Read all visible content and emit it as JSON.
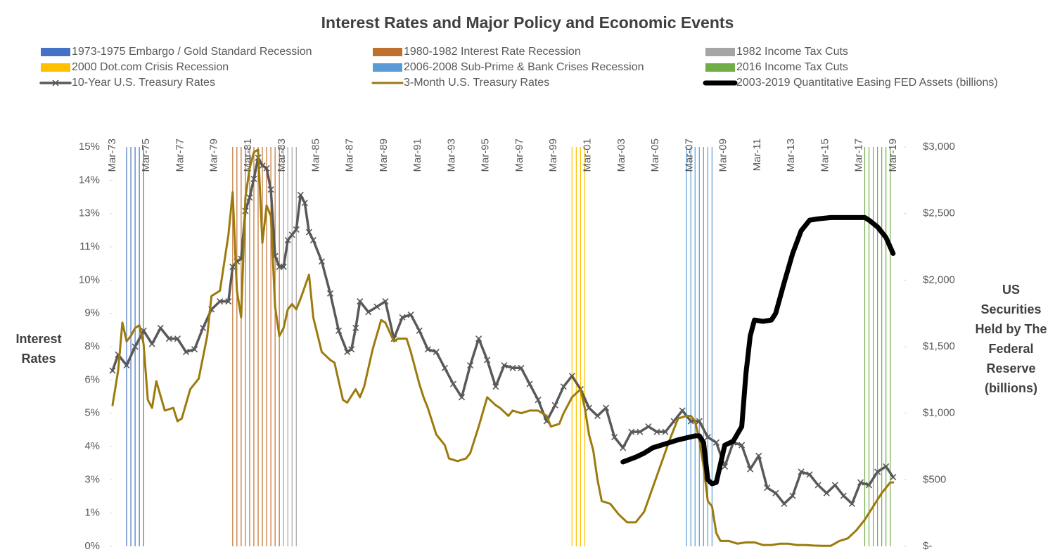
{
  "chart_data": {
    "type": "line",
    "title": "Interest Rates and Major Policy and Economic Events",
    "ylabel": "Interest Rates",
    "y2label": "US Securities Held by The Federal Reserve (billions)",
    "xlim": [
      1973.17,
      2019.8
    ],
    "xticks": [
      {
        "value": 1973.17,
        "label": "Mar-73"
      },
      {
        "value": 1975.17,
        "label": "Mar-75"
      },
      {
        "value": 1977.17,
        "label": "Mar-77"
      },
      {
        "value": 1979.17,
        "label": "Mar-79"
      },
      {
        "value": 1981.17,
        "label": "Mar-81"
      },
      {
        "value": 1983.17,
        "label": "Mar-83"
      },
      {
        "value": 1985.17,
        "label": "Mar-85"
      },
      {
        "value": 1987.17,
        "label": "Mar-87"
      },
      {
        "value": 1989.17,
        "label": "Mar-89"
      },
      {
        "value": 1991.17,
        "label": "Mar-91"
      },
      {
        "value": 1993.17,
        "label": "Mar-93"
      },
      {
        "value": 1995.17,
        "label": "Mar-95"
      },
      {
        "value": 1997.17,
        "label": "Mar-97"
      },
      {
        "value": 1999.17,
        "label": "Mar-99"
      },
      {
        "value": 2001.17,
        "label": "Mar-01"
      },
      {
        "value": 2003.17,
        "label": "Mar-03"
      },
      {
        "value": 2005.17,
        "label": "Mar-05"
      },
      {
        "value": 2007.17,
        "label": "Mar-07"
      },
      {
        "value": 2009.17,
        "label": "Mar-09"
      },
      {
        "value": 2011.17,
        "label": "Mar-11"
      },
      {
        "value": 2013.17,
        "label": "Mar-13"
      },
      {
        "value": 2015.17,
        "label": "Mar-15"
      },
      {
        "value": 2017.17,
        "label": "Mar-17"
      },
      {
        "value": 2019.17,
        "label": "Mar-19"
      }
    ],
    "ylim": [
      0,
      15
    ],
    "yticks": [
      {
        "value": 0,
        "label": "0%"
      },
      {
        "value": 1.25,
        "label": "1%"
      },
      {
        "value": 2.5,
        "label": "3%"
      },
      {
        "value": 3.75,
        "label": "4%"
      },
      {
        "value": 5,
        "label": "5%"
      },
      {
        "value": 6.25,
        "label": "6%"
      },
      {
        "value": 7.5,
        "label": "8%"
      },
      {
        "value": 8.75,
        "label": "9%"
      },
      {
        "value": 10,
        "label": "10%"
      },
      {
        "value": 11.25,
        "label": "11%"
      },
      {
        "value": 12.5,
        "label": "13%"
      },
      {
        "value": 13.75,
        "label": "14%"
      },
      {
        "value": 15,
        "label": "15%"
      }
    ],
    "y2lim": [
      0,
      3000
    ],
    "y2ticks": [
      {
        "value": 0,
        "label": "$-"
      },
      {
        "value": 500,
        "label": "$500"
      },
      {
        "value": 1000,
        "label": "$1,000"
      },
      {
        "value": 1500,
        "label": "$1,500"
      },
      {
        "value": 2000,
        "label": "$2,000"
      },
      {
        "value": 2500,
        "label": "$2,500"
      },
      {
        "value": 3000,
        "label": "$3,000"
      }
    ],
    "events": [
      {
        "name": "1973-1975 Embargo / Gold Standard Recession",
        "color": "#4472c4",
        "x": [
          1974,
          1974.25,
          1974.5,
          1974.75,
          1975
        ]
      },
      {
        "name": "1980-1982 Interest Rate Recession",
        "color": "#c0702e",
        "x": [
          1980.25,
          1980.5,
          1980.75,
          1981,
          1981.25,
          1981.5,
          1981.75,
          1982,
          1982.25,
          1982.5,
          1982.75,
          1983
        ]
      },
      {
        "name": "1982 Income Tax Cuts",
        "color": "#a5a5a5",
        "x": [
          1983.25,
          1983.5,
          1983.75,
          1984
        ]
      },
      {
        "name": "2000 Dot.com Crisis Recession",
        "color": "#ffc000",
        "x": [
          2000.25,
          2000.5,
          2000.75,
          2001
        ]
      },
      {
        "name": "2006-2008 Sub-Prime & Bank Crises Recession",
        "color": "#5b9bd5",
        "x": [
          2007,
          2007.25,
          2007.5,
          2007.75,
          2008,
          2008.25,
          2008.5
        ]
      },
      {
        "name": "2016 Income Tax Cuts",
        "color": "#70ad47",
        "x": [
          2017.5,
          2017.75,
          2018,
          2018.25,
          2018.5,
          2018.75,
          2019
        ]
      }
    ],
    "series": [
      {
        "name": "10-Year U.S. Treasury Rates",
        "color": "#595959",
        "marker": "x",
        "x": [
          1973.17,
          1973.5,
          1974,
          1974.5,
          1975,
          1975.5,
          1976,
          1976.5,
          1977,
          1977.5,
          1978,
          1978.5,
          1979,
          1979.5,
          1980,
          1980.25,
          1980.5,
          1980.75,
          1981,
          1981.25,
          1981.5,
          1981.75,
          1982,
          1982.25,
          1982.5,
          1982.75,
          1983,
          1983.25,
          1983.5,
          1983.75,
          1984,
          1984.25,
          1984.5,
          1984.75,
          1985,
          1985.5,
          1986,
          1986.5,
          1987,
          1987.25,
          1987.5,
          1987.75,
          1988.25,
          1988.75,
          1989.25,
          1989.75,
          1990.25,
          1990.75,
          1991.25,
          1991.75,
          1992.25,
          1992.75,
          1993.25,
          1993.75,
          1994.25,
          1994.75,
          1995.25,
          1995.75,
          1996.25,
          1996.75,
          1997.25,
          1997.75,
          1998.25,
          1998.75,
          1999.25,
          1999.75,
          2000.25,
          2000.75,
          2001.25,
          2001.75,
          2002.25,
          2002.75,
          2003.25,
          2003.75,
          2004.25,
          2004.75,
          2005.25,
          2005.75,
          2006.25,
          2006.75,
          2007.25,
          2007.75,
          2008.25,
          2008.75,
          2009.25,
          2009.75,
          2010.25,
          2010.75,
          2011.25,
          2011.75,
          2012.25,
          2012.75,
          2013.25,
          2013.75,
          2014.25,
          2014.75,
          2015.25,
          2015.75,
          2016.25,
          2016.75,
          2017.25,
          2017.75,
          2018.25,
          2018.75,
          2019.17
        ],
        "values": [
          6.6,
          7.2,
          6.8,
          7.5,
          8.1,
          7.6,
          8.2,
          7.8,
          7.8,
          7.3,
          7.4,
          8.2,
          8.9,
          9.2,
          9.2,
          10.5,
          10.7,
          10.8,
          12.6,
          13.1,
          13.8,
          14.6,
          14.3,
          14.2,
          13.4,
          10.9,
          10.5,
          10.5,
          11.5,
          11.7,
          11.9,
          13.2,
          12.9,
          11.8,
          11.5,
          10.7,
          9.5,
          8.1,
          7.3,
          7.4,
          8.2,
          9.2,
          8.8,
          9.0,
          9.2,
          7.8,
          8.6,
          8.7,
          8.1,
          7.4,
          7.3,
          6.7,
          6.1,
          5.6,
          6.8,
          7.8,
          7.0,
          6.0,
          6.8,
          6.7,
          6.7,
          6.1,
          5.5,
          4.7,
          5.3,
          6.0,
          6.4,
          5.9,
          5.2,
          4.9,
          5.2,
          4.1,
          3.7,
          4.3,
          4.3,
          4.5,
          4.3,
          4.3,
          4.7,
          5.1,
          4.7,
          4.7,
          4.1,
          3.9,
          3.0,
          3.9,
          3.8,
          2.9,
          3.4,
          2.2,
          2.0,
          1.6,
          1.9,
          2.8,
          2.7,
          2.3,
          2.0,
          2.3,
          1.9,
          1.6,
          2.4,
          2.3,
          2.8,
          3.0,
          2.6
        ]
      },
      {
        "name": "3-Month U.S. Treasury Rates",
        "color": "#9c7a0c",
        "x": [
          1973.17,
          1973.5,
          1973.75,
          1974,
          1974.25,
          1974.5,
          1974.75,
          1975,
          1975.25,
          1975.5,
          1975.75,
          1976.25,
          1976.75,
          1977,
          1977.25,
          1977.75,
          1978.25,
          1978.75,
          1979,
          1979.5,
          1980,
          1980.25,
          1980.5,
          1980.75,
          1981,
          1981.25,
          1981.5,
          1981.75,
          1982,
          1982.25,
          1982.5,
          1982.75,
          1983,
          1983.25,
          1983.5,
          1983.75,
          1984,
          1984.25,
          1984.75,
          1985,
          1985.5,
          1986,
          1986.25,
          1986.75,
          1987,
          1987.5,
          1987.75,
          1988,
          1988.5,
          1989,
          1989.25,
          1989.75,
          1990,
          1990.5,
          1990.75,
          1991.25,
          1991.5,
          1991.75,
          1992.25,
          1992.75,
          1993,
          1993.5,
          1994,
          1994.25,
          1994.75,
          1995.25,
          1995.75,
          1996,
          1996.5,
          1996.75,
          1997.25,
          1997.75,
          1998.25,
          1998.75,
          1999,
          1999.5,
          1999.75,
          2000.25,
          2000.75,
          2001,
          2001.25,
          2001.5,
          2001.75,
          2002,
          2002.5,
          2003,
          2003.5,
          2004,
          2004.5,
          2005,
          2005.5,
          2006,
          2006.5,
          2007,
          2007.25,
          2007.5,
          2007.75,
          2008,
          2008.25,
          2008.5,
          2008.75,
          2009,
          2009.5,
          2010,
          2010.5,
          2011,
          2011.5,
          2012,
          2012.5,
          2013,
          2013.5,
          2014,
          2014.5,
          2015,
          2015.5,
          2016,
          2016.5,
          2017,
          2017.5,
          2018,
          2018.5,
          2019,
          2019.17
        ],
        "values": [
          5.3,
          6.6,
          8.4,
          7.7,
          7.9,
          8.2,
          8.3,
          7.6,
          5.5,
          5.2,
          6.2,
          5.1,
          5.2,
          4.7,
          4.8,
          5.9,
          6.3,
          7.9,
          9.4,
          9.6,
          11.7,
          13.3,
          9.6,
          8.6,
          13.1,
          14.2,
          14.8,
          14.9,
          11.4,
          12.8,
          12.4,
          9.0,
          7.9,
          8.2,
          8.9,
          9.1,
          8.9,
          9.3,
          10.2,
          8.6,
          7.3,
          7.0,
          6.9,
          5.5,
          5.4,
          5.9,
          5.6,
          6.0,
          7.4,
          8.5,
          8.4,
          7.7,
          7.8,
          7.8,
          7.3,
          6.1,
          5.6,
          5.2,
          4.2,
          3.8,
          3.3,
          3.2,
          3.3,
          3.5,
          4.5,
          5.6,
          5.3,
          5.2,
          4.9,
          5.1,
          5.0,
          5.1,
          5.1,
          4.9,
          4.5,
          4.6,
          5.0,
          5.6,
          5.9,
          5.2,
          4.2,
          3.6,
          2.5,
          1.7,
          1.6,
          1.2,
          0.9,
          0.9,
          1.3,
          2.2,
          3.1,
          4.0,
          4.8,
          4.9,
          4.9,
          4.7,
          4.0,
          3.0,
          1.7,
          1.5,
          0.5,
          0.2,
          0.2,
          0.1,
          0.15,
          0.15,
          0.05,
          0.05,
          0.1,
          0.1,
          0.05,
          0.05,
          0.03,
          0.02,
          0.02,
          0.2,
          0.3,
          0.6,
          1.0,
          1.5,
          2.0,
          2.4,
          2.4
        ]
      },
      {
        "name": "2003-2019 Quantitative Easing FED Assets (billions)",
        "color": "#000000",
        "axis": "y2",
        "x": [
          2003.25,
          2004,
          2004.5,
          2005,
          2005.5,
          2006,
          2006.5,
          2007,
          2007.5,
          2007.75,
          2008,
          2008.25,
          2008.5,
          2008.75,
          2009,
          2009.25,
          2009.75,
          2010.25,
          2010.5,
          2010.75,
          2011,
          2011.5,
          2012,
          2012.25,
          2012.75,
          2013.25,
          2013.75,
          2014.25,
          2014.75,
          2015.5,
          2016.5,
          2017.5,
          2017.75,
          2018.25,
          2018.75,
          2019.17
        ],
        "values": [
          634,
          670,
          700,
          740,
          760,
          780,
          800,
          815,
          830,
          830,
          780,
          500,
          470,
          480,
          620,
          760,
          790,
          900,
          1300,
          1580,
          1700,
          1690,
          1700,
          1750,
          1980,
          2200,
          2370,
          2450,
          2460,
          2470,
          2470,
          2470,
          2450,
          2400,
          2320,
          2200
        ]
      }
    ]
  }
}
